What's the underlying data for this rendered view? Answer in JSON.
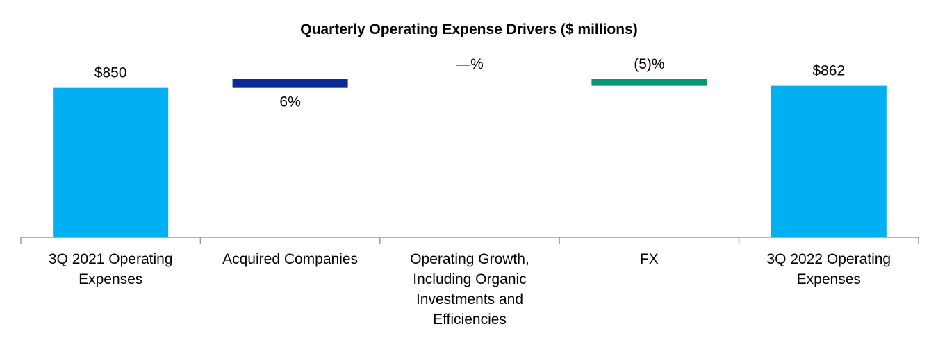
{
  "chart_data": {
    "type": "bar",
    "subtype": "waterfall",
    "title": "Quarterly Operating Expense Drivers  ($ millions)",
    "xlabel": "",
    "ylabel": "",
    "grid": false,
    "legend": "none",
    "categories": [
      [
        "3Q 2021 Operating",
        "Expenses"
      ],
      [
        "Acquired Companies"
      ],
      [
        "Operating Growth,",
        "Including Organic",
        "Investments and",
        "Efficiencies"
      ],
      [
        "FX"
      ],
      [
        "3Q 2022 Operating",
        "Expenses"
      ]
    ],
    "bars": [
      {
        "kind": "total",
        "start": 0,
        "end": 850,
        "label": "$850",
        "label_position": "above",
        "color": "#00b0f0"
      },
      {
        "kind": "delta",
        "start": 850,
        "end": 900,
        "label": "6%",
        "label_position": "below",
        "color": "#0a2a9e"
      },
      {
        "kind": "delta",
        "start": 900,
        "end": 900,
        "label": "—%",
        "label_position": "above",
        "color": "#0a2a9e"
      },
      {
        "kind": "delta",
        "start": 900,
        "end": 862,
        "label": "(5)%",
        "label_position": "above",
        "color": "#009a78"
      },
      {
        "kind": "total",
        "start": 0,
        "end": 862,
        "label": "$862",
        "label_position": "above",
        "color": "#00b0f0"
      }
    ],
    "ylim": [
      0,
      900
    ]
  }
}
